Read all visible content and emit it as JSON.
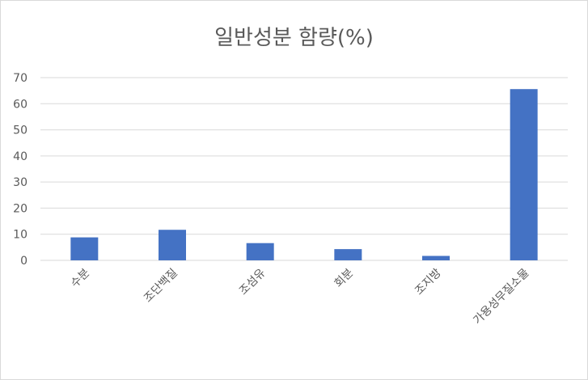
{
  "chart_data": {
    "type": "bar",
    "title": "일반성분 함량(%)",
    "categories": [
      "수분",
      "조단백질",
      "조섬유",
      "회분",
      "조지방",
      "가용성무질소물"
    ],
    "values": [
      8.8,
      11.7,
      6.6,
      4.3,
      1.7,
      65.6
    ],
    "ylim": [
      0,
      70
    ],
    "yticks": [
      0,
      10,
      20,
      30,
      40,
      50,
      60,
      70
    ],
    "grid": true,
    "bar_color": "#4472c4",
    "grid_color": "#d9d9d9"
  }
}
